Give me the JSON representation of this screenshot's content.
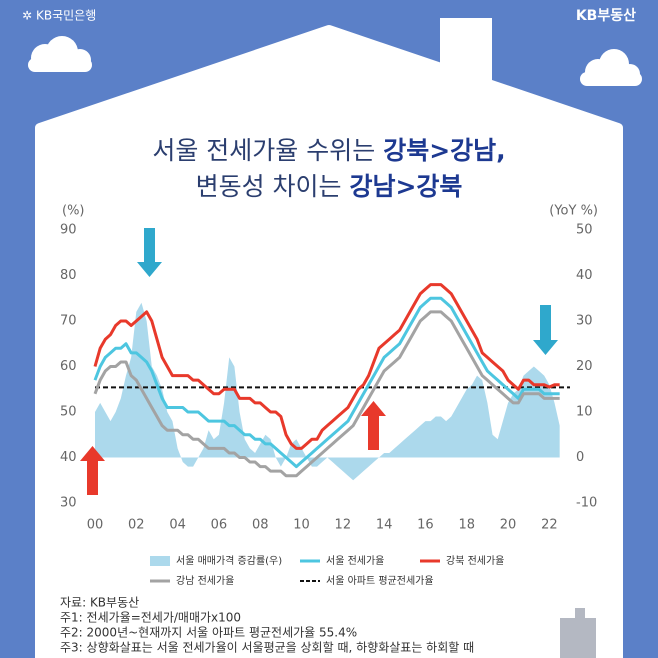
{
  "header": {
    "bank_logo": "KB국민은행",
    "brand": "KB부동산"
  },
  "chart_data": {
    "type": "line",
    "title_line1": [
      "서울 전세가율 수위는 ",
      "강북>강남,"
    ],
    "title_line2": [
      "변동성 차이는 ",
      "강남>강북"
    ],
    "y_unit": "(%)",
    "y2_unit": "(YoY %)",
    "xlim": [
      2000,
      2023
    ],
    "ylim": [
      30,
      90
    ],
    "y2lim": [
      -10,
      50
    ],
    "yticks": [
      30,
      40,
      50,
      60,
      70,
      80,
      90
    ],
    "y2ticks": [
      -10,
      0,
      10,
      20,
      30,
      40,
      50
    ],
    "xticks": [
      {
        "value": 2000,
        "label": "00"
      },
      {
        "value": 2002,
        "label": "02"
      },
      {
        "value": 2004,
        "label": "04"
      },
      {
        "value": 2006,
        "label": "06"
      },
      {
        "value": 2008,
        "label": "08"
      },
      {
        "value": 2010,
        "label": "10"
      },
      {
        "value": 2012,
        "label": "12"
      },
      {
        "value": 2014,
        "label": "14"
      },
      {
        "value": 2016,
        "label": "16"
      },
      {
        "value": 2018,
        "label": "18"
      },
      {
        "value": 2020,
        "label": "20"
      },
      {
        "value": 2022,
        "label": "22"
      }
    ],
    "x": [
      2000,
      2000.25,
      2000.5,
      2000.75,
      2001,
      2001.25,
      2001.5,
      2001.75,
      2002,
      2002.25,
      2002.5,
      2002.75,
      2003,
      2003.25,
      2003.5,
      2003.75,
      2004,
      2004.25,
      2004.5,
      2004.75,
      2005,
      2005.25,
      2005.5,
      2005.75,
      2006,
      2006.25,
      2006.5,
      2006.75,
      2007,
      2007.25,
      2007.5,
      2007.75,
      2008,
      2008.25,
      2008.5,
      2008.75,
      2009,
      2009.25,
      2009.5,
      2009.75,
      2010,
      2010.25,
      2010.5,
      2010.75,
      2011,
      2011.25,
      2011.5,
      2011.75,
      2012,
      2012.25,
      2012.5,
      2012.75,
      2013,
      2013.25,
      2013.5,
      2013.75,
      2014,
      2014.25,
      2014.5,
      2014.75,
      2015,
      2015.25,
      2015.5,
      2015.75,
      2016,
      2016.25,
      2016.5,
      2016.75,
      2017,
      2017.25,
      2017.5,
      2017.75,
      2018,
      2018.25,
      2018.5,
      2018.75,
      2019,
      2019.25,
      2019.5,
      2019.75,
      2020,
      2020.25,
      2020.5,
      2020.75,
      2021,
      2021.25,
      2021.5,
      2021.75,
      2022,
      2022.25,
      2022.5
    ],
    "series": [
      {
        "name": "서울 매매가격 증감률(우)",
        "color": "#acd9ec",
        "kind": "area",
        "axis": "y2",
        "values": [
          10,
          12,
          10,
          8,
          10,
          13,
          18,
          22,
          32,
          34,
          30,
          20,
          18,
          15,
          10,
          8,
          2,
          -1,
          -2,
          -2,
          0,
          2,
          6,
          4,
          5,
          12,
          22,
          20,
          10,
          4,
          2,
          1,
          3,
          5,
          4,
          0,
          -2,
          0,
          3,
          4,
          2,
          0,
          -2,
          -2,
          -1,
          0,
          -1,
          -2,
          -3,
          -4,
          -5,
          -4,
          -3,
          -2,
          -1,
          0,
          1,
          1,
          2,
          3,
          4,
          5,
          6,
          7,
          8,
          8,
          9,
          9,
          8,
          9,
          11,
          13,
          15,
          16,
          18,
          17,
          12,
          5,
          4,
          8,
          12,
          14,
          15,
          18,
          19,
          20,
          19,
          18,
          16,
          12,
          7
        ]
      },
      {
        "name": "서울 전세가율",
        "color": "#4dc6e0",
        "kind": "line",
        "values": [
          57,
          60,
          62,
          63,
          64,
          64,
          65,
          63,
          63,
          62,
          61,
          59,
          56,
          53,
          51,
          51,
          51,
          51,
          50,
          50,
          50,
          49,
          48,
          48,
          48,
          48,
          47,
          47,
          46,
          45,
          45,
          44,
          44,
          43,
          43,
          42,
          41,
          40,
          39,
          38,
          39,
          40,
          41,
          42,
          43,
          44,
          45,
          46,
          47,
          48,
          50,
          52,
          54,
          56,
          58,
          60,
          62,
          63,
          64,
          65,
          67,
          69,
          71,
          73,
          74,
          75,
          75,
          75,
          74,
          73,
          71,
          69,
          67,
          65,
          63,
          61,
          59,
          58,
          57,
          56,
          55,
          54,
          53,
          55,
          55,
          55,
          55,
          54,
          54,
          54,
          54
        ]
      },
      {
        "name": "강북 전세가율",
        "color": "#e8392b",
        "kind": "line",
        "values": [
          60,
          64,
          66,
          67,
          69,
          70,
          70,
          69,
          70,
          71,
          72,
          70,
          66,
          62,
          60,
          58,
          58,
          58,
          58,
          57,
          57,
          56,
          55,
          54,
          54,
          55,
          55,
          55,
          53,
          53,
          53,
          52,
          52,
          51,
          50,
          50,
          49,
          45,
          43,
          42,
          42,
          43,
          44,
          44,
          46,
          47,
          48,
          49,
          50,
          51,
          53,
          55,
          56,
          58,
          61,
          64,
          65,
          66,
          67,
          68,
          70,
          72,
          74,
          76,
          77,
          78,
          78,
          78,
          77,
          76,
          74,
          72,
          70,
          68,
          66,
          63,
          62,
          61,
          60,
          59,
          57,
          56,
          55,
          57,
          57,
          56,
          56,
          56,
          55.5,
          56,
          56
        ]
      },
      {
        "name": "강남 전세가율",
        "color": "#a3a3a3",
        "kind": "line",
        "values": [
          54,
          57,
          59,
          60,
          60,
          61,
          61,
          58,
          57,
          55,
          53,
          51,
          49,
          47,
          46,
          46,
          46,
          45,
          45,
          44,
          44,
          43,
          42,
          42,
          42,
          42,
          41,
          41,
          40,
          40,
          39,
          39,
          38,
          38,
          37,
          37,
          37,
          36,
          36,
          36,
          37,
          38,
          39,
          40,
          41,
          42,
          43,
          44,
          45,
          46,
          47,
          49,
          51,
          53,
          55,
          57,
          59,
          60,
          61,
          62,
          64,
          66,
          68,
          70,
          71,
          72,
          72,
          72,
          71,
          70,
          68,
          66,
          64,
          62,
          60,
          58,
          57,
          56,
          55,
          54,
          53,
          52,
          52,
          54,
          54,
          54,
          54,
          53,
          53,
          53,
          53
        ]
      }
    ],
    "reference_line": {
      "name": "서울 아파트 평균전세가율",
      "value": 55.4,
      "color": "#111111"
    }
  },
  "notes": [
    "자료: KB부동산",
    "주1: 전세가율=전세가/매매가x100",
    "주2: 2000년~현재까지 서울 아파트 평균전세가율 55.4%",
    "주3: 상향화살표는 서울 전세가율이 서울평균을 상회할 때, 하향화살표는 하회할 때"
  ]
}
